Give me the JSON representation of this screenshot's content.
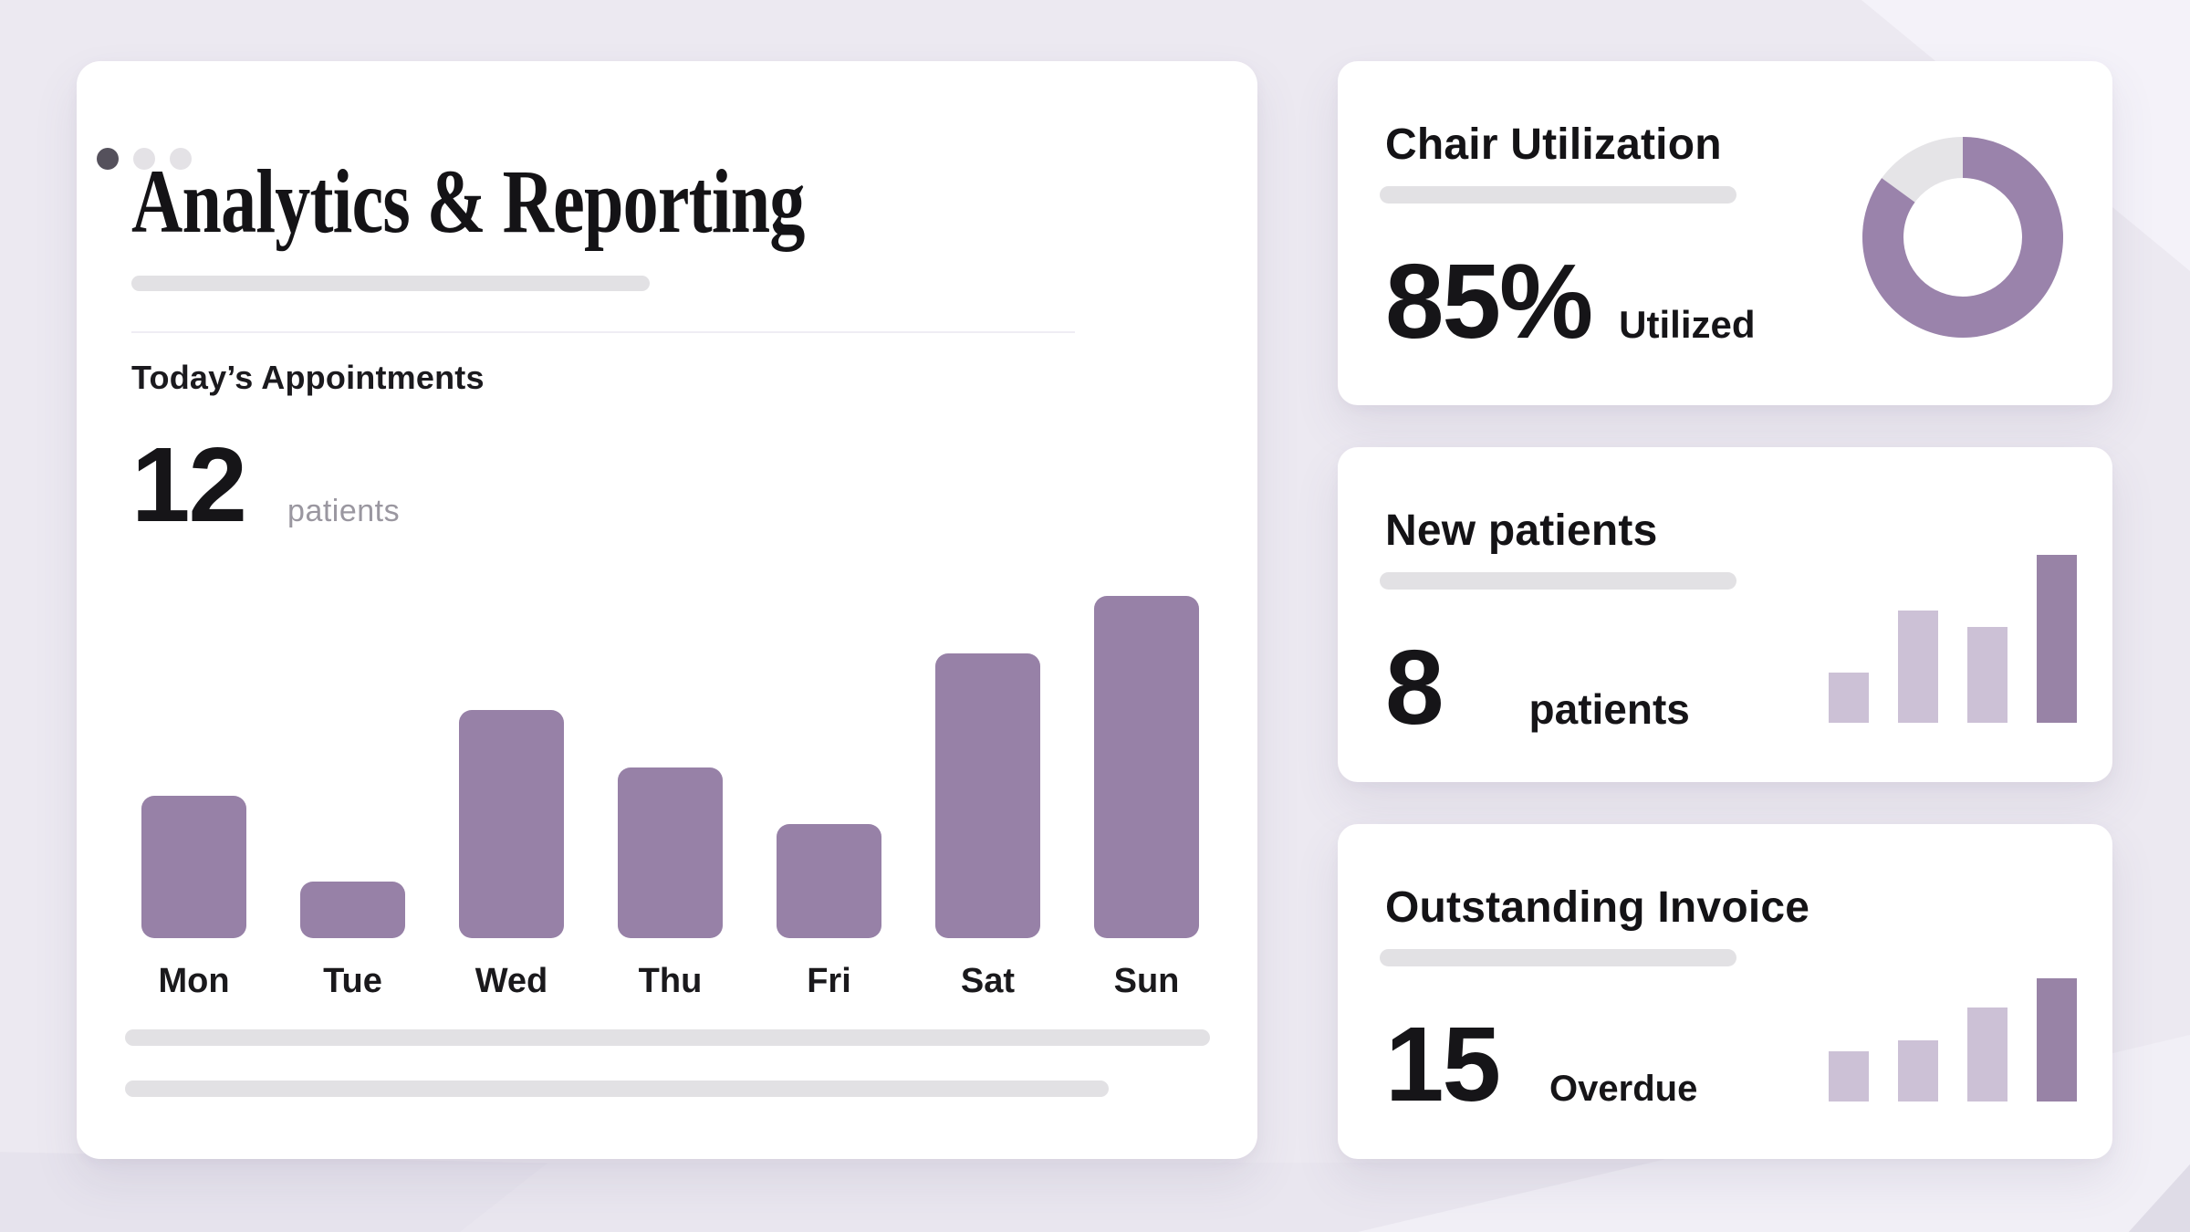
{
  "browser_window": {
    "dots": [
      {
        "name": "window-dot-1",
        "color": "#55515C"
      },
      {
        "name": "window-dot-2",
        "color": "#E4E2E6"
      },
      {
        "name": "window-dot-3",
        "color": "#E4E2E6"
      }
    ]
  },
  "main_card": {
    "title": "Analytics & Reporting",
    "subtitle": "Today’s Appointments",
    "stat_value": "12",
    "stat_unit": "patients"
  },
  "side_cards": [
    {
      "title": "Chair Utilization",
      "stat_value": "85%",
      "stat_label": "Utilized"
    },
    {
      "title": "New patients",
      "stat_value": "8",
      "stat_label": "patients"
    },
    {
      "title": "Outstanding Invoice",
      "stat_value": "15",
      "stat_label": "Overdue"
    }
  ],
  "chart_data": [
    {
      "id": "weekly-appointments",
      "type": "bar",
      "title": "Today’s Appointments",
      "categories": [
        "Mon",
        "Tue",
        "Wed",
        "Thu",
        "Fri",
        "Sat",
        "Sun"
      ],
      "values": [
        5,
        2,
        8,
        6,
        4,
        10,
        12
      ],
      "unit": "patients",
      "color": "#9781A7",
      "grid": false,
      "value_axis_visible": false
    },
    {
      "id": "chair-utilization",
      "type": "donut",
      "title": "Chair Utilization",
      "segments": [
        {
          "label": "Utilized",
          "value": 85,
          "color": "#9A83AB"
        },
        {
          "label": "",
          "value": 15,
          "color": "#E5E4E7"
        }
      ]
    },
    {
      "id": "new-patients-trend",
      "type": "bar",
      "title": "New patients",
      "values": [
        30,
        67,
        57,
        100
      ],
      "unit": "relative height %",
      "colors": [
        "#CCC1D6",
        "#CCC1D6",
        "#CCC1D6",
        "#9883A6"
      ],
      "grid": false,
      "value_axis_visible": false
    },
    {
      "id": "outstanding-invoice-trend",
      "type": "bar",
      "title": "Outstanding Invoice",
      "values": [
        41,
        50,
        76,
        100
      ],
      "unit": "relative height %",
      "colors": [
        "#CCC1D6",
        "#CCC1D6",
        "#CCC1D6",
        "#9883A6"
      ],
      "grid": false,
      "value_axis_visible": false
    }
  ],
  "colors": {
    "page_background": "#ECE9F1",
    "card_background": "#FFFFFF",
    "accent_purple": "#9781A7",
    "accent_purple_light": "#CCC1D6",
    "donut_track": "#E5E4E7",
    "skeleton_gray": "#E2E1E4",
    "text_dark": "#1A191C",
    "text_gray": "#9A97A0"
  }
}
